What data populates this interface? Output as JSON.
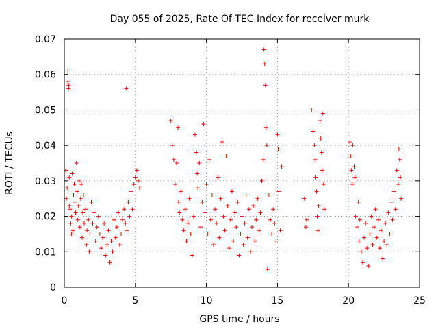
{
  "chart_data": {
    "type": "scatter",
    "title": "Day 055 of 2025, Rate Of TEC Index for receiver murk",
    "xlabel": "GPS time / hours",
    "ylabel": "ROTI / TECUs",
    "xlim": [
      0,
      25
    ],
    "ylim": [
      0,
      0.07
    ],
    "xticks": [
      "0",
      "5",
      "10",
      "15",
      "20",
      "25"
    ],
    "yticks": [
      "0",
      "0.01",
      "0.02",
      "0.03",
      "0.04",
      "0.05",
      "0.06",
      "0.07"
    ],
    "grid": true,
    "marker": "plus",
    "color": "#ff0000",
    "series": [
      {
        "points": [
          [
            0.1,
            0.033
          ],
          [
            0.15,
            0.025
          ],
          [
            0.2,
            0.028
          ],
          [
            0.25,
            0.061
          ],
          [
            0.25,
            0.058
          ],
          [
            0.3,
            0.056
          ],
          [
            0.3,
            0.057
          ],
          [
            0.35,
            0.023
          ],
          [
            0.35,
            0.031
          ],
          [
            0.4,
            0.022
          ],
          [
            0.45,
            0.018
          ],
          [
            0.5,
            0.02
          ],
          [
            0.5,
            0.015
          ],
          [
            0.55,
            0.032
          ],
          [
            0.6,
            0.016
          ],
          [
            0.65,
            0.026
          ],
          [
            0.7,
            0.029
          ],
          [
            0.75,
            0.024
          ],
          [
            0.8,
            0.021
          ],
          [
            0.85,
            0.035
          ],
          [
            0.9,
            0.027
          ],
          [
            0.95,
            0.019
          ],
          [
            1.0,
            0.023
          ],
          [
            1.05,
            0.03
          ],
          [
            1.1,
            0.017
          ],
          [
            1.15,
            0.025
          ],
          [
            1.2,
            0.029
          ],
          [
            1.25,
            0.014
          ],
          [
            1.3,
            0.021
          ],
          [
            1.35,
            0.026
          ],
          [
            1.4,
            0.018
          ],
          [
            1.5,
            0.022
          ],
          [
            1.55,
            0.012
          ],
          [
            1.6,
            0.016
          ],
          [
            1.7,
            0.019
          ],
          [
            1.75,
            0.01
          ],
          [
            1.8,
            0.015
          ],
          [
            1.9,
            0.024
          ],
          [
            2.0,
            0.018
          ],
          [
            2.1,
            0.021
          ],
          [
            2.2,
            0.013
          ],
          [
            2.3,
            0.017
          ],
          [
            2.4,
            0.02
          ],
          [
            2.5,
            0.015
          ],
          [
            2.6,
            0.011
          ],
          [
            2.7,
            0.014
          ],
          [
            2.8,
            0.018
          ],
          [
            2.9,
            0.009
          ],
          [
            3.0,
            0.012
          ],
          [
            3.1,
            0.016
          ],
          [
            3.2,
            0.007
          ],
          [
            3.3,
            0.013
          ],
          [
            3.4,
            0.01
          ],
          [
            3.5,
            0.019
          ],
          [
            3.6,
            0.014
          ],
          [
            3.7,
            0.017
          ],
          [
            3.8,
            0.021
          ],
          [
            3.9,
            0.012
          ],
          [
            4.0,
            0.015
          ],
          [
            4.1,
            0.019
          ],
          [
            4.2,
            0.022
          ],
          [
            4.3,
            0.018
          ],
          [
            4.35,
            0.056
          ],
          [
            4.4,
            0.016
          ],
          [
            4.5,
            0.024
          ],
          [
            4.6,
            0.02
          ],
          [
            4.7,
            0.027
          ],
          [
            4.8,
            0.022
          ],
          [
            4.9,
            0.029
          ],
          [
            5.0,
            0.031
          ],
          [
            5.1,
            0.033
          ],
          [
            5.2,
            0.03
          ],
          [
            5.3,
            0.028
          ],
          [
            7.5,
            0.047
          ],
          [
            7.6,
            0.04
          ],
          [
            7.7,
            0.036
          ],
          [
            7.8,
            0.029
          ],
          [
            7.9,
            0.035
          ],
          [
            8.0,
            0.045
          ],
          [
            8.05,
            0.024
          ],
          [
            8.1,
            0.021
          ],
          [
            8.2,
            0.027
          ],
          [
            8.3,
            0.019
          ],
          [
            8.4,
            0.016
          ],
          [
            8.5,
            0.022
          ],
          [
            8.6,
            0.013
          ],
          [
            8.7,
            0.018
          ],
          [
            8.8,
            0.025
          ],
          [
            8.9,
            0.015
          ],
          [
            9.0,
            0.009
          ],
          [
            9.1,
            0.02
          ],
          [
            9.2,
            0.043
          ],
          [
            9.3,
            0.038
          ],
          [
            9.35,
            0.032
          ],
          [
            9.4,
            0.028
          ],
          [
            9.5,
            0.035
          ],
          [
            9.6,
            0.017
          ],
          [
            9.7,
            0.024
          ],
          [
            9.8,
            0.046
          ],
          [
            9.9,
            0.021
          ],
          [
            10.0,
            0.029
          ],
          [
            10.1,
            0.015
          ],
          [
            10.2,
            0.036
          ],
          [
            10.3,
            0.019
          ],
          [
            10.4,
            0.026
          ],
          [
            10.5,
            0.012
          ],
          [
            10.6,
            0.022
          ],
          [
            10.7,
            0.018
          ],
          [
            10.8,
            0.031
          ],
          [
            10.9,
            0.014
          ],
          [
            11.0,
            0.025
          ],
          [
            11.1,
            0.041
          ],
          [
            11.2,
            0.02
          ],
          [
            11.3,
            0.016
          ],
          [
            11.4,
            0.037
          ],
          [
            11.5,
            0.023
          ],
          [
            11.6,
            0.011
          ],
          [
            11.7,
            0.019
          ],
          [
            11.8,
            0.027
          ],
          [
            11.9,
            0.013
          ],
          [
            12.0,
            0.021
          ],
          [
            12.1,
            0.017
          ],
          [
            12.2,
            0.024
          ],
          [
            12.3,
            0.009
          ],
          [
            12.4,
            0.015
          ],
          [
            12.5,
            0.02
          ],
          [
            12.6,
            0.012
          ],
          [
            12.7,
            0.018
          ],
          [
            12.8,
            0.026
          ],
          [
            12.9,
            0.014
          ],
          [
            13.0,
            0.022
          ],
          [
            13.1,
            0.01
          ],
          [
            13.2,
            0.017
          ],
          [
            13.3,
            0.023
          ],
          [
            13.4,
            0.013
          ],
          [
            13.5,
            0.019
          ],
          [
            13.6,
            0.025
          ],
          [
            13.7,
            0.016
          ],
          [
            13.8,
            0.021
          ],
          [
            13.9,
            0.03
          ],
          [
            14.0,
            0.036
          ],
          [
            14.05,
            0.067
          ],
          [
            14.1,
            0.063
          ],
          [
            14.15,
            0.057
          ],
          [
            14.2,
            0.045
          ],
          [
            14.25,
            0.04
          ],
          [
            14.3,
            0.005
          ],
          [
            14.4,
            0.026
          ],
          [
            14.5,
            0.019
          ],
          [
            14.6,
            0.015
          ],
          [
            14.7,
            0.022
          ],
          [
            14.8,
            0.018
          ],
          [
            14.9,
            0.013
          ],
          [
            15.0,
            0.043
          ],
          [
            15.05,
            0.039
          ],
          [
            15.1,
            0.027
          ],
          [
            15.2,
            0.016
          ],
          [
            15.3,
            0.034
          ],
          [
            16.9,
            0.025
          ],
          [
            17.0,
            0.017
          ],
          [
            17.05,
            0.019
          ],
          [
            17.4,
            0.05
          ],
          [
            17.5,
            0.044
          ],
          [
            17.6,
            0.04
          ],
          [
            17.65,
            0.036
          ],
          [
            17.7,
            0.031
          ],
          [
            17.75,
            0.027
          ],
          [
            17.8,
            0.02
          ],
          [
            17.85,
            0.016
          ],
          [
            17.9,
            0.023
          ],
          [
            18.0,
            0.047
          ],
          [
            18.05,
            0.042
          ],
          [
            18.1,
            0.038
          ],
          [
            18.15,
            0.033
          ],
          [
            18.2,
            0.049
          ],
          [
            18.25,
            0.029
          ],
          [
            18.3,
            0.022
          ],
          [
            20.1,
            0.041
          ],
          [
            20.15,
            0.037
          ],
          [
            20.2,
            0.033
          ],
          [
            20.25,
            0.029
          ],
          [
            20.3,
            0.04
          ],
          [
            20.4,
            0.034
          ],
          [
            20.45,
            0.031
          ],
          [
            20.5,
            0.02
          ],
          [
            20.6,
            0.017
          ],
          [
            20.7,
            0.024
          ],
          [
            20.75,
            0.013
          ],
          [
            20.8,
            0.019
          ],
          [
            20.9,
            0.01
          ],
          [
            21.0,
            0.007
          ],
          [
            21.1,
            0.014
          ],
          [
            21.2,
            0.018
          ],
          [
            21.3,
            0.011
          ],
          [
            21.4,
            0.006
          ],
          [
            21.5,
            0.015
          ],
          [
            21.6,
            0.02
          ],
          [
            21.7,
            0.012
          ],
          [
            21.8,
            0.017
          ],
          [
            21.9,
            0.022
          ],
          [
            22.0,
            0.014
          ],
          [
            22.1,
            0.019
          ],
          [
            22.2,
            0.011
          ],
          [
            22.3,
            0.016
          ],
          [
            22.4,
            0.008
          ],
          [
            22.5,
            0.013
          ],
          [
            22.6,
            0.018
          ],
          [
            22.7,
            0.012
          ],
          [
            22.8,
            0.021
          ],
          [
            22.9,
            0.015
          ],
          [
            23.0,
            0.024
          ],
          [
            23.1,
            0.019
          ],
          [
            23.2,
            0.027
          ],
          [
            23.3,
            0.022
          ],
          [
            23.4,
            0.033
          ],
          [
            23.5,
            0.029
          ],
          [
            23.55,
            0.039
          ],
          [
            23.6,
            0.036
          ],
          [
            23.65,
            0.031
          ],
          [
            23.7,
            0.025
          ]
        ]
      }
    ]
  }
}
